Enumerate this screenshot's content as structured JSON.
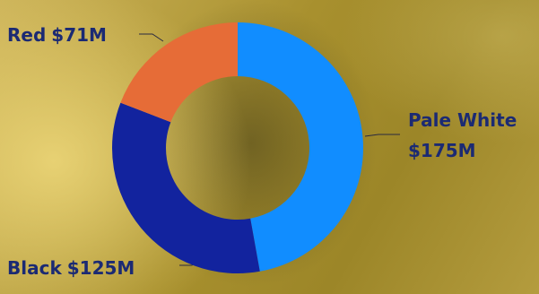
{
  "chart_data": {
    "type": "donut",
    "categories": [
      "Pale White",
      "Black",
      "Red"
    ],
    "values": [
      175,
      125,
      71
    ],
    "value_labels": [
      "$175M",
      "$125M",
      "$71M"
    ],
    "colors": [
      "#118dff",
      "#12239e",
      "#e66c37"
    ]
  }
}
